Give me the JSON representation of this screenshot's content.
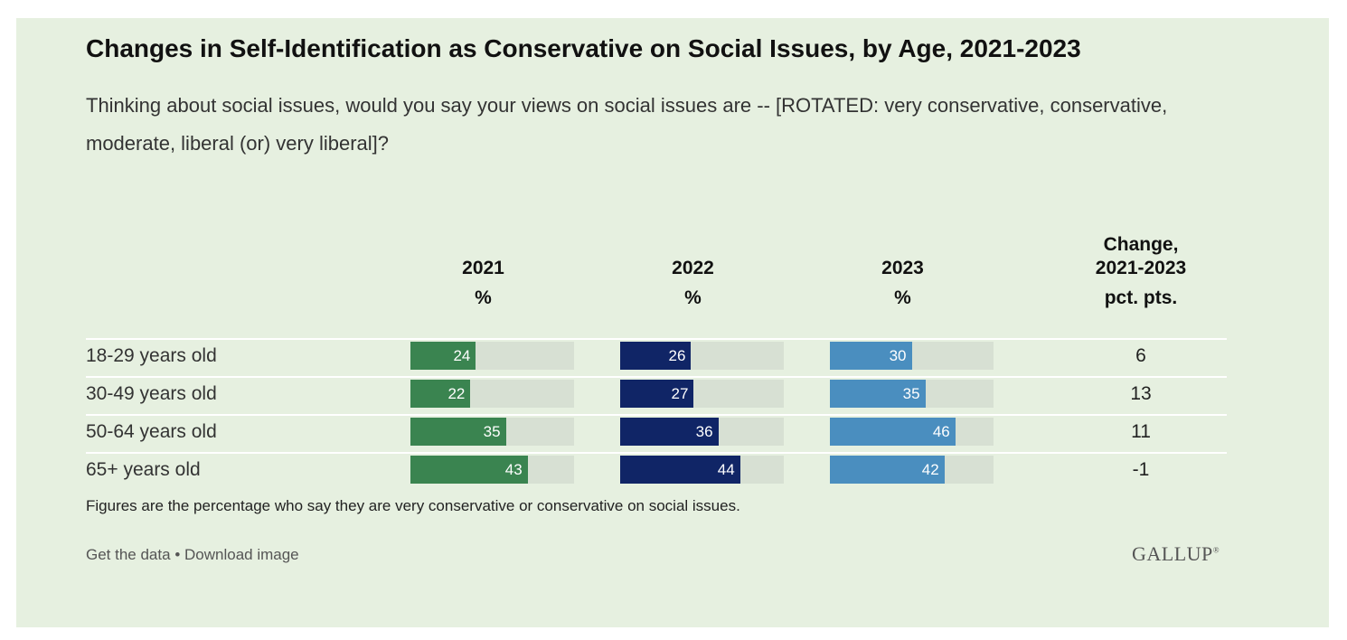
{
  "chart_data": {
    "type": "bar",
    "title": "Changes in Self-Identification as Conservative on Social Issues, by Age, 2021-2023",
    "subtitle": "Thinking about social issues, would you say your views on social issues are -- [ROTATED: very conservative, conservative, moderate, liberal (or) very liberal]?",
    "categories": [
      "18-29 years old",
      "30-49 years old",
      "50-64 years old",
      "65+ years old"
    ],
    "series": [
      {
        "name": "2021",
        "unit": "%",
        "color": "#3a8450",
        "values": [
          24,
          22,
          35,
          43
        ]
      },
      {
        "name": "2022",
        "unit": "%",
        "color": "#102566",
        "values": [
          26,
          27,
          36,
          44
        ]
      },
      {
        "name": "2023",
        "unit": "%",
        "color": "#4a8ebf",
        "values": [
          30,
          35,
          46,
          42
        ]
      }
    ],
    "change": {
      "name": "Change, 2021-2023",
      "unit": "pct. pts.",
      "values": [
        "6",
        "13",
        "11",
        "-1"
      ]
    },
    "xlim": [
      0,
      60
    ],
    "track_color": "#d7e0d3",
    "background_color": "#e6f0e0",
    "note": "Figures are the percentage who say they are very conservative or conservative on social issues."
  },
  "footer": {
    "get_data": "Get the data",
    "separator": "•",
    "download": "Download image",
    "logo": "GALLUP"
  }
}
